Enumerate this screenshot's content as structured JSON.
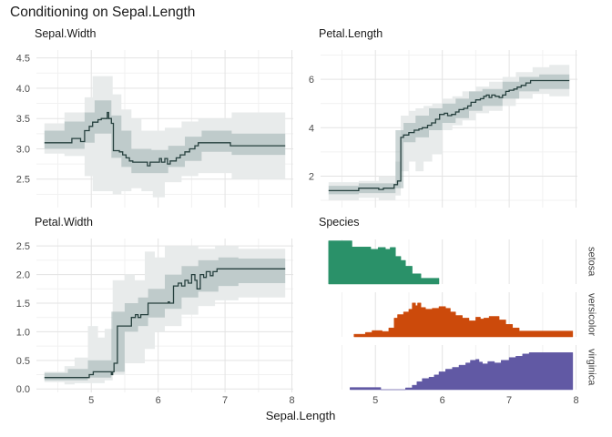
{
  "title": "Conditioning on Sepal.Length",
  "x_axis": {
    "label": "Sepal.Length",
    "xlim": [
      4.18,
      8.02
    ],
    "tick_values": [
      5,
      6,
      7,
      8
    ],
    "tick_labels": [
      "5",
      "6",
      "7",
      "8"
    ],
    "minor_values": [
      4.5,
      5.5,
      6.5,
      7.5
    ],
    "data_end": 7.9
  },
  "colors": {
    "line": "#26403e",
    "band_outer": "#e8ebeb",
    "band_inner": "rgba(141,163,163,0.45)",
    "grid_major": "#e3e3e3",
    "grid_minor": "#f1f1f1",
    "tick_label": "#4d4d4d",
    "title": "#1a1a1a",
    "strip_label": "#404040",
    "setosa": "#2a9169",
    "versicolor": "#cc4a0b",
    "virginica": "#6159a4"
  },
  "chart_data": [
    {
      "type": "line",
      "title": "Sepal.Width",
      "col": "left",
      "row": "top",
      "ylim": [
        2.03,
        4.63
      ],
      "ytick_values": [
        2.5,
        3.0,
        3.5,
        4.0,
        4.5
      ],
      "ytick_labels": [
        "2.5",
        "3.0",
        "3.5",
        "4.0",
        "4.5"
      ],
      "y_minor": [
        2.25,
        2.75,
        3.25,
        3.75,
        4.25
      ],
      "line": [
        [
          4.3,
          3.1
        ],
        [
          4.71,
          3.17
        ],
        [
          4.84,
          3.12
        ],
        [
          4.9,
          3.3
        ],
        [
          4.97,
          3.37
        ],
        [
          5.02,
          3.44
        ],
        [
          5.1,
          3.48
        ],
        [
          5.15,
          3.5
        ],
        [
          5.22,
          3.5
        ],
        [
          5.24,
          3.6
        ],
        [
          5.26,
          3.5
        ],
        [
          5.3,
          3.42
        ],
        [
          5.33,
          2.97
        ],
        [
          5.42,
          2.95
        ],
        [
          5.47,
          2.9
        ],
        [
          5.52,
          2.85
        ],
        [
          5.57,
          2.8
        ],
        [
          5.62,
          2.78
        ],
        [
          5.84,
          2.72
        ],
        [
          5.88,
          2.78
        ],
        [
          6.02,
          2.84
        ],
        [
          6.05,
          2.78
        ],
        [
          6.1,
          2.84
        ],
        [
          6.14,
          2.75
        ],
        [
          6.18,
          2.8
        ],
        [
          6.27,
          2.85
        ],
        [
          6.33,
          2.9
        ],
        [
          6.4,
          2.95
        ],
        [
          6.47,
          3.0
        ],
        [
          6.55,
          3.05
        ],
        [
          6.6,
          3.1
        ],
        [
          7.08,
          3.05
        ],
        [
          7.9,
          3.05
        ]
      ],
      "outer": [
        [
          4.3,
          2.92,
          3.42
        ],
        [
          4.6,
          2.88,
          3.6
        ],
        [
          4.9,
          2.55,
          3.85
        ],
        [
          5.02,
          2.3,
          4.2
        ],
        [
          5.32,
          2.25,
          3.9
        ],
        [
          5.45,
          2.3,
          3.65
        ],
        [
          5.6,
          2.35,
          3.5
        ],
        [
          5.75,
          2.3,
          3.3
        ],
        [
          5.92,
          2.2,
          3.3
        ],
        [
          6.1,
          2.45,
          3.35
        ],
        [
          6.35,
          2.55,
          3.45
        ],
        [
          6.6,
          2.6,
          3.5
        ],
        [
          7.1,
          2.5,
          3.6
        ],
        [
          7.9,
          2.5,
          3.6
        ]
      ],
      "inner": [
        [
          4.3,
          3.0,
          3.3
        ],
        [
          4.6,
          3.0,
          3.45
        ],
        [
          4.9,
          3.1,
          3.6
        ],
        [
          5.05,
          3.25,
          3.8
        ],
        [
          5.3,
          2.85,
          3.55
        ],
        [
          5.45,
          2.7,
          3.3
        ],
        [
          5.6,
          2.6,
          3.0
        ],
        [
          5.9,
          2.6,
          2.98
        ],
        [
          6.15,
          2.7,
          3.05
        ],
        [
          6.4,
          2.8,
          3.2
        ],
        [
          6.65,
          2.95,
          3.3
        ],
        [
          7.1,
          2.9,
          3.25
        ],
        [
          7.9,
          2.9,
          3.25
        ]
      ]
    },
    {
      "type": "line",
      "title": "Petal.Length",
      "col": "right",
      "row": "top",
      "ylim": [
        0.7,
        7.21
      ],
      "ytick_values": [
        2,
        4,
        6
      ],
      "ytick_labels": [
        "2",
        "4",
        "6"
      ],
      "y_minor": [
        1,
        3,
        5,
        7
      ],
      "line": [
        [
          4.3,
          1.4
        ],
        [
          4.75,
          1.5
        ],
        [
          5.05,
          1.45
        ],
        [
          5.12,
          1.5
        ],
        [
          5.28,
          1.65
        ],
        [
          5.33,
          1.8
        ],
        [
          5.38,
          3.6
        ],
        [
          5.42,
          3.7
        ],
        [
          5.5,
          3.8
        ],
        [
          5.58,
          3.9
        ],
        [
          5.65,
          3.95
        ],
        [
          5.7,
          4.0
        ],
        [
          5.78,
          4.1
        ],
        [
          5.84,
          4.2
        ],
        [
          5.9,
          4.35
        ],
        [
          5.96,
          4.55
        ],
        [
          6.03,
          4.6
        ],
        [
          6.08,
          4.5
        ],
        [
          6.14,
          4.55
        ],
        [
          6.2,
          4.65
        ],
        [
          6.25,
          4.75
        ],
        [
          6.32,
          4.8
        ],
        [
          6.38,
          4.9
        ],
        [
          6.43,
          5.05
        ],
        [
          6.5,
          5.15
        ],
        [
          6.57,
          5.2
        ],
        [
          6.62,
          5.3
        ],
        [
          6.66,
          5.35
        ],
        [
          6.7,
          5.25
        ],
        [
          6.74,
          5.35
        ],
        [
          6.79,
          5.3
        ],
        [
          6.85,
          5.25
        ],
        [
          6.9,
          5.35
        ],
        [
          6.95,
          5.5
        ],
        [
          7.0,
          5.55
        ],
        [
          7.07,
          5.6
        ],
        [
          7.12,
          5.68
        ],
        [
          7.18,
          5.75
        ],
        [
          7.25,
          5.85
        ],
        [
          7.32,
          5.95
        ],
        [
          7.9,
          5.95
        ]
      ],
      "outer": [
        [
          4.3,
          1.0,
          1.75
        ],
        [
          4.75,
          1.1,
          1.8
        ],
        [
          5.05,
          1.0,
          2.0
        ],
        [
          5.3,
          1.2,
          2.6
        ],
        [
          5.38,
          2.2,
          4.5
        ],
        [
          5.5,
          2.6,
          4.7
        ],
        [
          5.6,
          2.2,
          4.8
        ],
        [
          5.72,
          2.6,
          4.9
        ],
        [
          5.85,
          2.9,
          5.0
        ],
        [
          6.0,
          3.9,
          5.2
        ],
        [
          6.15,
          4.1,
          5.3
        ],
        [
          6.3,
          4.3,
          5.5
        ],
        [
          6.5,
          4.6,
          5.7
        ],
        [
          6.7,
          4.7,
          5.9
        ],
        [
          6.9,
          4.9,
          6.1
        ],
        [
          7.1,
          5.2,
          6.3
        ],
        [
          7.35,
          5.4,
          6.5
        ],
        [
          7.6,
          5.3,
          6.6
        ],
        [
          7.9,
          5.3,
          6.6
        ]
      ],
      "inner": [
        [
          4.3,
          1.25,
          1.6
        ],
        [
          4.75,
          1.3,
          1.7
        ],
        [
          5.3,
          1.5,
          3.9
        ],
        [
          5.42,
          3.4,
          4.2
        ],
        [
          5.6,
          3.6,
          4.5
        ],
        [
          5.8,
          3.9,
          4.8
        ],
        [
          6.0,
          4.2,
          5.0
        ],
        [
          6.2,
          4.4,
          5.2
        ],
        [
          6.4,
          4.7,
          5.5
        ],
        [
          6.6,
          4.9,
          5.6
        ],
        [
          6.9,
          5.2,
          5.9
        ],
        [
          7.15,
          5.5,
          6.1
        ],
        [
          7.45,
          5.6,
          6.2
        ],
        [
          7.9,
          5.6,
          6.2
        ]
      ]
    },
    {
      "type": "line",
      "title": "Petal.Width",
      "col": "left",
      "row": "bottom",
      "ylim": [
        -0.06,
        2.63
      ],
      "ytick_values": [
        0.0,
        0.5,
        1.0,
        1.5,
        2.0,
        2.5
      ],
      "ytick_labels": [
        "0.0",
        "0.5",
        "1.0",
        "1.5",
        "2.0",
        "2.5"
      ],
      "y_minor": [
        0.25,
        0.75,
        1.25,
        1.75,
        2.25
      ],
      "line": [
        [
          4.3,
          0.2
        ],
        [
          4.97,
          0.25
        ],
        [
          5.03,
          0.3
        ],
        [
          5.3,
          0.25
        ],
        [
          5.32,
          0.3
        ],
        [
          5.34,
          0.45
        ],
        [
          5.39,
          1.1
        ],
        [
          5.6,
          1.25
        ],
        [
          5.66,
          1.3
        ],
        [
          5.7,
          1.25
        ],
        [
          5.74,
          1.3
        ],
        [
          5.85,
          1.5
        ],
        [
          6.15,
          1.52
        ],
        [
          6.17,
          1.5
        ],
        [
          6.23,
          1.8
        ],
        [
          6.3,
          1.85
        ],
        [
          6.35,
          1.8
        ],
        [
          6.4,
          1.9
        ],
        [
          6.45,
          1.85
        ],
        [
          6.5,
          2.0
        ],
        [
          6.55,
          1.9
        ],
        [
          6.58,
          1.75
        ],
        [
          6.63,
          2.0
        ],
        [
          6.68,
          1.95
        ],
        [
          6.72,
          2.05
        ],
        [
          6.78,
          1.98
        ],
        [
          6.82,
          2.05
        ],
        [
          6.88,
          2.1
        ],
        [
          7.9,
          2.1
        ]
      ],
      "outer": [
        [
          4.3,
          0.12,
          0.3
        ],
        [
          4.6,
          0.08,
          0.4
        ],
        [
          4.75,
          0.1,
          0.55
        ],
        [
          4.95,
          0.1,
          1.1
        ],
        [
          5.1,
          0.1,
          0.9
        ],
        [
          5.2,
          0.15,
          1.05
        ],
        [
          5.32,
          0.25,
          1.9
        ],
        [
          5.5,
          0.45,
          2.0
        ],
        [
          5.65,
          0.45,
          1.9
        ],
        [
          5.8,
          0.7,
          2.4
        ],
        [
          5.95,
          1.0,
          2.3
        ],
        [
          6.1,
          1.1,
          2.5
        ],
        [
          6.35,
          1.3,
          2.5
        ],
        [
          6.6,
          1.45,
          2.45
        ],
        [
          6.85,
          1.55,
          2.5
        ],
        [
          7.2,
          1.6,
          2.45
        ],
        [
          7.9,
          1.6,
          2.45
        ]
      ],
      "inner": [
        [
          4.3,
          0.15,
          0.28
        ],
        [
          4.65,
          0.15,
          0.35
        ],
        [
          4.95,
          0.2,
          0.5
        ],
        [
          5.3,
          0.3,
          1.35
        ],
        [
          5.5,
          1.0,
          1.5
        ],
        [
          5.7,
          1.1,
          1.6
        ],
        [
          5.85,
          1.25,
          1.75
        ],
        [
          6.1,
          1.4,
          2.0
        ],
        [
          6.35,
          1.6,
          2.15
        ],
        [
          6.6,
          1.7,
          2.25
        ],
        [
          6.9,
          1.8,
          2.3
        ],
        [
          7.2,
          1.85,
          2.28
        ],
        [
          7.9,
          1.85,
          2.28
        ]
      ]
    },
    {
      "type": "density-facets",
      "title": "Species",
      "col": "right",
      "row": "bottom",
      "facets": [
        {
          "label": "setosa",
          "color_key": "setosa",
          "points": [
            [
              4.3,
              0.97
            ],
            [
              4.65,
              0.83
            ],
            [
              4.93,
              0.78
            ],
            [
              5.04,
              0.82
            ],
            [
              5.15,
              0.78
            ],
            [
              5.22,
              0.82
            ],
            [
              5.3,
              0.62
            ],
            [
              5.38,
              0.53
            ],
            [
              5.45,
              0.4
            ],
            [
              5.55,
              0.23
            ],
            [
              5.68,
              0.13
            ],
            [
              5.95,
              0
            ]
          ]
        },
        {
          "label": "versicolor",
          "color_key": "versicolor",
          "points": [
            [
              4.68,
              0.06
            ],
            [
              4.85,
              0.1
            ],
            [
              4.95,
              0.14
            ],
            [
              5.1,
              0.12
            ],
            [
              5.2,
              0.2
            ],
            [
              5.28,
              0.42
            ],
            [
              5.33,
              0.5
            ],
            [
              5.42,
              0.56
            ],
            [
              5.5,
              0.62
            ],
            [
              5.55,
              0.76
            ],
            [
              5.6,
              0.7
            ],
            [
              5.63,
              0.76
            ],
            [
              5.68,
              0.66
            ],
            [
              5.75,
              0.62
            ],
            [
              5.85,
              0.64
            ],
            [
              5.95,
              0.68
            ],
            [
              6.05,
              0.64
            ],
            [
              6.12,
              0.56
            ],
            [
              6.2,
              0.48
            ],
            [
              6.3,
              0.42
            ],
            [
              6.4,
              0.36
            ],
            [
              6.5,
              0.44
            ],
            [
              6.57,
              0.4
            ],
            [
              6.62,
              0.42
            ],
            [
              6.7,
              0.46
            ],
            [
              6.85,
              0.38
            ],
            [
              6.95,
              0.28
            ],
            [
              7.05,
              0.2
            ],
            [
              7.15,
              0.13
            ],
            [
              7.95,
              0
            ]
          ]
        },
        {
          "label": "virginica",
          "color_key": "virginica",
          "points": [
            [
              4.62,
              0.05
            ],
            [
              5.08,
              0
            ],
            [
              5.45,
              0.04
            ],
            [
              5.55,
              0.1
            ],
            [
              5.62,
              0.18
            ],
            [
              5.7,
              0.25
            ],
            [
              5.8,
              0.28
            ],
            [
              5.88,
              0.33
            ],
            [
              5.95,
              0.4
            ],
            [
              6.05,
              0.46
            ],
            [
              6.15,
              0.5
            ],
            [
              6.25,
              0.55
            ],
            [
              6.35,
              0.6
            ],
            [
              6.42,
              0.66
            ],
            [
              6.5,
              0.68
            ],
            [
              6.55,
              0.62
            ],
            [
              6.6,
              0.58
            ],
            [
              6.68,
              0.63
            ],
            [
              6.78,
              0.6
            ],
            [
              6.88,
              0.66
            ],
            [
              7.0,
              0.72
            ],
            [
              7.1,
              0.75
            ],
            [
              7.2,
              0.8
            ],
            [
              7.3,
              0.83
            ],
            [
              7.95,
              0
            ]
          ]
        }
      ]
    }
  ]
}
